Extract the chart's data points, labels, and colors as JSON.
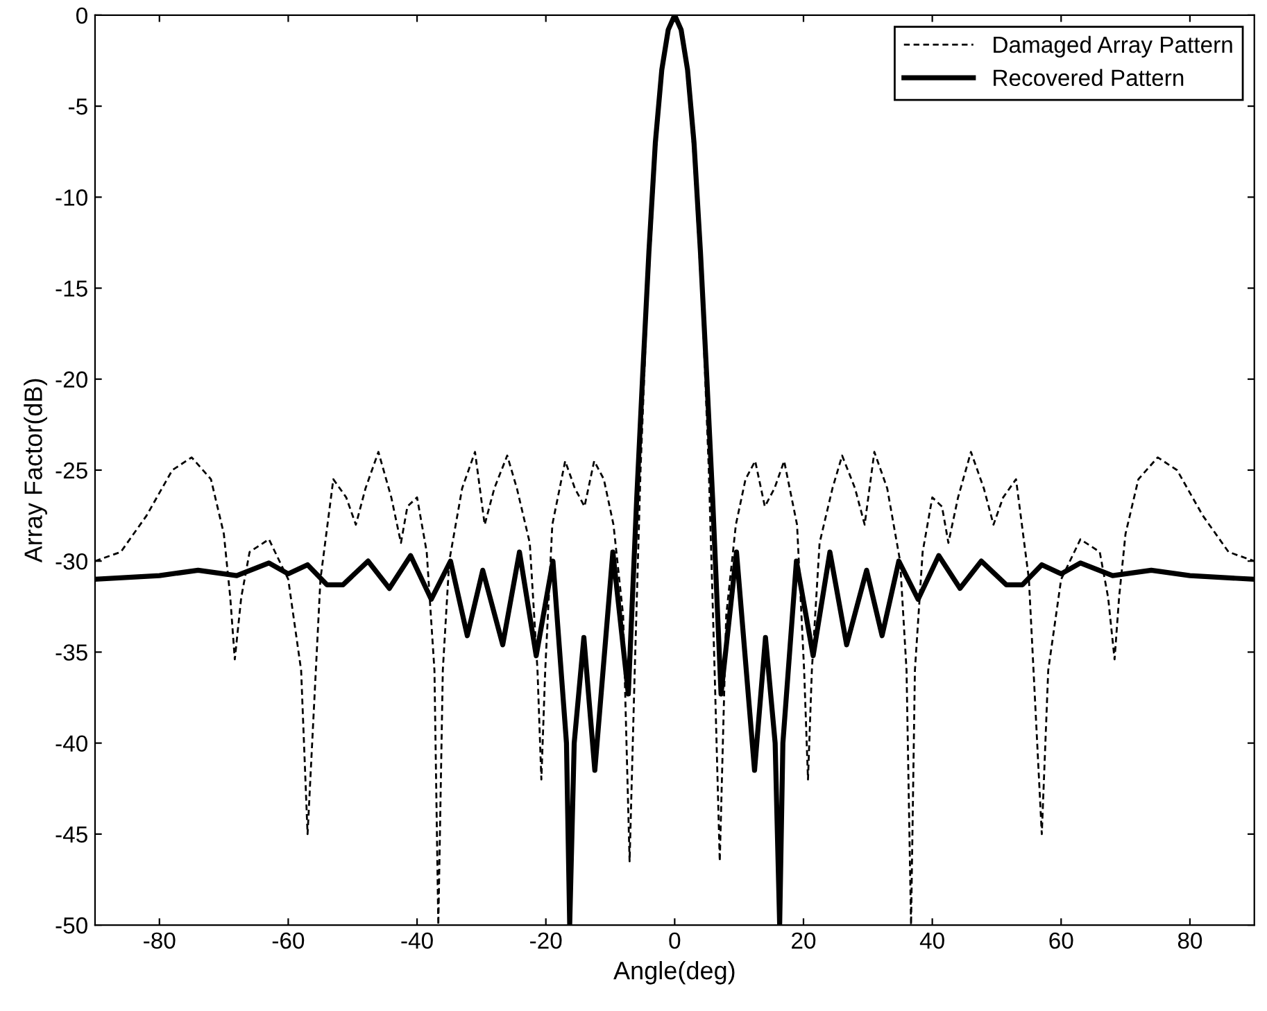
{
  "chart_data": {
    "type": "line",
    "xlabel": "Angle(deg)",
    "ylabel": "Array Factor(dB)",
    "xlim": [
      -90,
      90
    ],
    "xticks": [
      -80,
      -60,
      -40,
      -20,
      0,
      20,
      40,
      60,
      80
    ],
    "ylim": [
      -50,
      0
    ],
    "yticks": [
      -50,
      -45,
      -40,
      -35,
      -30,
      -25,
      -20,
      -15,
      -10,
      -5,
      0
    ],
    "grid": false,
    "legend": "top right",
    "marker": "none",
    "series": [
      {
        "name": "Damaged Array Pattern",
        "color": "#000000",
        "line_style": "dashed",
        "x": [
          -90,
          -86,
          -82,
          -78,
          -75,
          -72,
          -70,
          -69,
          -68.3,
          -67.3,
          -66,
          -63,
          -60,
          -58,
          -57,
          -56,
          -55,
          -53,
          -51,
          -49.5,
          -48,
          -46,
          -44,
          -42.5,
          -41.5,
          -40,
          -38.5,
          -37.3,
          -36.7,
          -36,
          -35,
          -33,
          -31,
          -29.5,
          -28,
          -26,
          -24.5,
          -22.5,
          -21.3,
          -20.7,
          -20.1,
          -19,
          -17,
          -15.5,
          -14,
          -12.5,
          -11,
          -9.5,
          -8,
          -7,
          -6.2,
          -5.3,
          -4.3,
          -3,
          -2,
          -1,
          0,
          1,
          2,
          3,
          4.3,
          5.3,
          6.2,
          7,
          8,
          9.5,
          11,
          12.5,
          14,
          15.5,
          17,
          19,
          20.1,
          20.7,
          21.3,
          22.5,
          24.5,
          26,
          28,
          29.5,
          31,
          33,
          35,
          36,
          36.7,
          37.3,
          38.5,
          40,
          41.5,
          42.5,
          44,
          46,
          48,
          49.5,
          51,
          53,
          55,
          56,
          57,
          58,
          60,
          63,
          66,
          67.3,
          68.3,
          69,
          70,
          72,
          75,
          78,
          82,
          86,
          90
        ],
        "values": [
          -30.0,
          -29.5,
          -27.5,
          -25.0,
          -24.3,
          -25.5,
          -28.5,
          -32,
          -35.4,
          -32,
          -29.5,
          -28.8,
          -31,
          -36,
          -45,
          -38,
          -31,
          -25.5,
          -26.5,
          -28,
          -26,
          -24,
          -26.5,
          -29,
          -27,
          -26.5,
          -29.5,
          -36,
          -50,
          -36,
          -30,
          -26,
          -24,
          -28,
          -26,
          -24.2,
          -26,
          -29,
          -36,
          -42,
          -36,
          -28,
          -24.5,
          -26,
          -27,
          -24.5,
          -25.5,
          -28,
          -33,
          -46.5,
          -36,
          -25,
          -16,
          -8,
          -3.2,
          -0.8,
          0,
          -0.8,
          -3.2,
          -8,
          -16,
          -25,
          -36,
          -46.5,
          -33,
          -28,
          -25.5,
          -24.5,
          -27,
          -26,
          -24.5,
          -28,
          -36,
          -42,
          -36,
          -29,
          -26,
          -24.2,
          -26,
          -28,
          -24,
          -26,
          -30,
          -36,
          -50,
          -36,
          -29.5,
          -26.5,
          -27,
          -29,
          -26.5,
          -24,
          -26,
          -28,
          -26.5,
          -25.5,
          -31,
          -38,
          -45,
          -36,
          -31,
          -28.8,
          -29.5,
          -32,
          -35.4,
          -32,
          -28.5,
          -25.5,
          -24.3,
          -25.0,
          -27.5,
          -29.5,
          -30.0
        ]
      },
      {
        "name": "Recovered Pattern",
        "color": "#000000",
        "line_style": "solid",
        "x": [
          -90,
          -80,
          -74,
          -68,
          -63,
          -60,
          -57,
          -54,
          -51.5,
          -47.6,
          -44.3,
          -41,
          -37.8,
          -34.8,
          -32.2,
          -29.8,
          -26.7,
          -24.1,
          -21.5,
          -18.9,
          -16.8,
          -16.3,
          -15.6,
          -14.1,
          -12.4,
          -9.6,
          -7.2,
          -5.9,
          -5,
          -4,
          -3,
          -2,
          -1,
          0,
          1,
          2,
          3,
          4,
          5,
          5.9,
          7.2,
          9.6,
          12.4,
          14.1,
          15.6,
          16.3,
          16.8,
          18.9,
          21.5,
          24.1,
          26.7,
          29.8,
          32.2,
          34.8,
          37.8,
          41,
          44.3,
          47.6,
          51.5,
          54,
          57,
          60,
          63,
          68,
          74,
          80,
          90
        ],
        "values": [
          -31.0,
          -30.8,
          -30.5,
          -30.8,
          -30.1,
          -30.7,
          -30.2,
          -31.3,
          -31.3,
          -30.0,
          -31.5,
          -29.7,
          -32.1,
          -30.0,
          -34.1,
          -30.5,
          -34.6,
          -29.5,
          -35.2,
          -30.0,
          -40,
          -50,
          -40,
          -34.2,
          -41.5,
          -29.5,
          -37.3,
          -26.6,
          -20,
          -13,
          -7,
          -3,
          -0.8,
          0,
          -0.8,
          -3,
          -7,
          -13,
          -20,
          -26.6,
          -37.3,
          -29.5,
          -41.5,
          -34.2,
          -40,
          -50,
          -40,
          -30.0,
          -35.2,
          -29.5,
          -34.6,
          -30.5,
          -34.1,
          -30.0,
          -32.1,
          -29.7,
          -31.5,
          -30.0,
          -31.3,
          -31.3,
          -30.2,
          -30.7,
          -30.1,
          -30.8,
          -30.5,
          -30.8,
          -31.0
        ]
      }
    ]
  }
}
